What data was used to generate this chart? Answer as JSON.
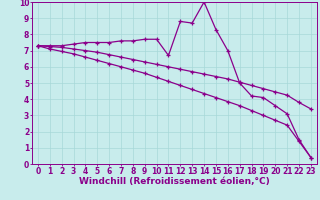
{
  "background_color": "#c8ecec",
  "line_color": "#8b008b",
  "grid_color": "#a8d8d8",
  "xlabel": "Windchill (Refroidissement éolien,°C)",
  "xlabel_fontsize": 6.5,
  "tick_fontsize": 5.5,
  "xlim": [
    -0.5,
    23.5
  ],
  "ylim": [
    0,
    10
  ],
  "xticks": [
    0,
    1,
    2,
    3,
    4,
    5,
    6,
    7,
    8,
    9,
    10,
    11,
    12,
    13,
    14,
    15,
    16,
    17,
    18,
    19,
    20,
    21,
    22,
    23
  ],
  "yticks": [
    0,
    1,
    2,
    3,
    4,
    5,
    6,
    7,
    8,
    9,
    10
  ],
  "line1_x": [
    0,
    1,
    2,
    3,
    4,
    5,
    6,
    7,
    8,
    9,
    10,
    11,
    12,
    13,
    14,
    15,
    16,
    17,
    18,
    19,
    20,
    21,
    22,
    23
  ],
  "line1_y": [
    7.3,
    7.3,
    7.3,
    7.4,
    7.5,
    7.5,
    7.5,
    7.6,
    7.6,
    7.7,
    7.7,
    6.7,
    8.8,
    8.7,
    10.0,
    8.3,
    7.0,
    5.0,
    4.2,
    4.1,
    3.6,
    3.1,
    1.5,
    0.4
  ],
  "line2_x": [
    0,
    1,
    2,
    3,
    4,
    5,
    6,
    7,
    8,
    9,
    10,
    11,
    12,
    13,
    14,
    15,
    16,
    17,
    18,
    19,
    20,
    21,
    22,
    23
  ],
  "line2_y": [
    7.3,
    7.25,
    7.2,
    7.1,
    7.0,
    6.9,
    6.75,
    6.6,
    6.45,
    6.3,
    6.15,
    6.0,
    5.85,
    5.7,
    5.55,
    5.4,
    5.25,
    5.05,
    4.85,
    4.65,
    4.45,
    4.25,
    3.8,
    3.4
  ],
  "line3_x": [
    0,
    1,
    2,
    3,
    4,
    5,
    6,
    7,
    8,
    9,
    10,
    11,
    12,
    13,
    14,
    15,
    16,
    17,
    18,
    19,
    20,
    21,
    22,
    23
  ],
  "line3_y": [
    7.3,
    7.1,
    6.95,
    6.8,
    6.6,
    6.4,
    6.2,
    6.0,
    5.8,
    5.6,
    5.35,
    5.1,
    4.85,
    4.6,
    4.35,
    4.1,
    3.85,
    3.6,
    3.3,
    3.0,
    2.7,
    2.4,
    1.4,
    0.4
  ]
}
